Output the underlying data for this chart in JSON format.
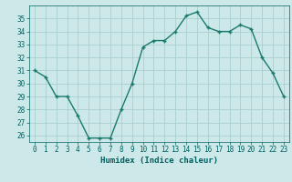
{
  "x": [
    0,
    1,
    2,
    3,
    4,
    5,
    6,
    7,
    8,
    9,
    10,
    11,
    12,
    13,
    14,
    15,
    16,
    17,
    18,
    19,
    20,
    21,
    22,
    23
  ],
  "y": [
    31,
    30.5,
    29,
    29,
    27.5,
    25.8,
    25.8,
    25.8,
    28,
    30,
    32.8,
    33.3,
    33.3,
    34,
    35.2,
    35.5,
    34.3,
    34,
    34,
    34.5,
    34.2,
    32,
    30.8,
    29
  ],
  "line_color": "#1a7a6e",
  "marker": "+",
  "marker_size": 3,
  "bg_color": "#cce8e8",
  "grid_color": "#aacfcf",
  "xlabel": "Humidex (Indice chaleur)",
  "tick_color": "#006060",
  "ylim": [
    25.5,
    36
  ],
  "xlim": [
    -0.5,
    23.5
  ],
  "yticks": [
    26,
    27,
    28,
    29,
    30,
    31,
    32,
    33,
    34,
    35
  ],
  "xticks": [
    0,
    1,
    2,
    3,
    4,
    5,
    6,
    7,
    8,
    9,
    10,
    11,
    12,
    13,
    14,
    15,
    16,
    17,
    18,
    19,
    20,
    21,
    22,
    23
  ],
  "line_width": 1.0,
  "tick_fontsize": 5.5,
  "xlabel_fontsize": 6.5
}
